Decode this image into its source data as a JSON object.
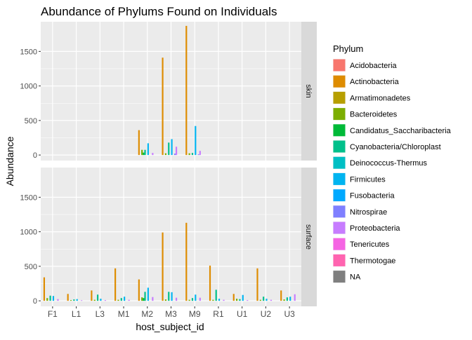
{
  "chart_data": {
    "type": "bar",
    "title": "Abundance of Phylums Found on Individuals",
    "xlabel": "host_subject_id",
    "ylabel": "Abundance",
    "ylim": [
      -80,
      1930
    ],
    "yticks": [
      0,
      500,
      1000,
      1500
    ],
    "grid": true,
    "categories": [
      "F1",
      "L1",
      "L3",
      "M1",
      "M2",
      "M3",
      "M9",
      "R1",
      "U1",
      "U2",
      "U3"
    ],
    "legend": {
      "title": "Phylum",
      "position": "right",
      "entries": [
        {
          "name": "Acidobacteria",
          "color": "#F8766D"
        },
        {
          "name": "Actinobacteria",
          "color": "#DE8C00"
        },
        {
          "name": "Armatimonadetes",
          "color": "#B79F00"
        },
        {
          "name": "Bacteroidetes",
          "color": "#7CAE00"
        },
        {
          "name": "Candidatus_Saccharibacteria",
          "color": "#00BA38"
        },
        {
          "name": "Cyanobacteria/Chloroplast",
          "color": "#00C08B"
        },
        {
          "name": "Deinococcus-Thermus",
          "color": "#00BFC4"
        },
        {
          "name": "Firmicutes",
          "color": "#00B4F0"
        },
        {
          "name": "Fusobacteria",
          "color": "#00A9FF"
        },
        {
          "name": "Nitrospirae",
          "color": "#7F7FFF"
        },
        {
          "name": "Proteobacteria",
          "color": "#C77CFF"
        },
        {
          "name": "Tenericutes",
          "color": "#F564E3"
        },
        {
          "name": "Thermotogae",
          "color": "#FF64B0"
        },
        {
          "name": "NA",
          "color": "#7F7F7F"
        }
      ]
    },
    "facets": [
      {
        "label": "skin",
        "bars": [
          {
            "category": "M2",
            "phylum": "Actinobacteria",
            "value": 360
          },
          {
            "category": "M2",
            "phylum": "Bacteroidetes",
            "value": 75
          },
          {
            "category": "M2",
            "phylum": "Candidatus_Saccharibacteria",
            "value": 35
          },
          {
            "category": "M2",
            "phylum": "Cyanobacteria/Chloroplast",
            "value": 75
          },
          {
            "category": "M2",
            "phylum": "Firmicutes",
            "value": 170
          },
          {
            "category": "M2",
            "phylum": "Proteobacteria",
            "value": 30
          },
          {
            "category": "M3",
            "phylum": "Actinobacteria",
            "value": 1410
          },
          {
            "category": "M3",
            "phylum": "Bacteroidetes",
            "value": 25
          },
          {
            "category": "M3",
            "phylum": "Cyanobacteria/Chloroplast",
            "value": 180
          },
          {
            "category": "M3",
            "phylum": "Firmicutes",
            "value": 230
          },
          {
            "category": "M3",
            "phylum": "Nitrospirae",
            "value": 20
          },
          {
            "category": "M3",
            "phylum": "Proteobacteria",
            "value": 120
          },
          {
            "category": "M9",
            "phylum": "Actinobacteria",
            "value": 1870
          },
          {
            "category": "M9",
            "phylum": "Bacteroidetes",
            "value": 25
          },
          {
            "category": "M9",
            "phylum": "Cyanobacteria/Chloroplast",
            "value": 30
          },
          {
            "category": "M9",
            "phylum": "Firmicutes",
            "value": 420
          },
          {
            "category": "M9",
            "phylum": "Nitrospirae",
            "value": 10
          },
          {
            "category": "M9",
            "phylum": "Proteobacteria",
            "value": 60
          }
        ]
      },
      {
        "label": "surface",
        "bars": [
          {
            "category": "F1",
            "phylum": "Actinobacteria",
            "value": 340
          },
          {
            "category": "F1",
            "phylum": "Bacteroidetes",
            "value": 40
          },
          {
            "category": "F1",
            "phylum": "Cyanobacteria/Chloroplast",
            "value": 75
          },
          {
            "category": "F1",
            "phylum": "Firmicutes",
            "value": 70
          },
          {
            "category": "F1",
            "phylum": "Proteobacteria",
            "value": 25
          },
          {
            "category": "L1",
            "phylum": "Actinobacteria",
            "value": 100
          },
          {
            "category": "L1",
            "phylum": "Bacteroidetes",
            "value": 10
          },
          {
            "category": "L1",
            "phylum": "Cyanobacteria/Chloroplast",
            "value": 20
          },
          {
            "category": "L1",
            "phylum": "Firmicutes",
            "value": 25
          },
          {
            "category": "L1",
            "phylum": "Proteobacteria",
            "value": 8
          },
          {
            "category": "L3",
            "phylum": "Actinobacteria",
            "value": 150
          },
          {
            "category": "L3",
            "phylum": "Bacteroidetes",
            "value": 15
          },
          {
            "category": "L3",
            "phylum": "Cyanobacteria/Chloroplast",
            "value": 90
          },
          {
            "category": "L3",
            "phylum": "Firmicutes",
            "value": 30
          },
          {
            "category": "L3",
            "phylum": "Proteobacteria",
            "value": 10
          },
          {
            "category": "M1",
            "phylum": "Actinobacteria",
            "value": 470
          },
          {
            "category": "M1",
            "phylum": "Bacteroidetes",
            "value": 15
          },
          {
            "category": "M1",
            "phylum": "Cyanobacteria/Chloroplast",
            "value": 40
          },
          {
            "category": "M1",
            "phylum": "Firmicutes",
            "value": 60
          },
          {
            "category": "M1",
            "phylum": "Proteobacteria",
            "value": 15
          },
          {
            "category": "M2",
            "phylum": "Actinobacteria",
            "value": 310
          },
          {
            "category": "M2",
            "phylum": "Bacteroidetes",
            "value": 50
          },
          {
            "category": "M2",
            "phylum": "Candidatus_Saccharibacteria",
            "value": 40
          },
          {
            "category": "M2",
            "phylum": "Cyanobacteria/Chloroplast",
            "value": 130
          },
          {
            "category": "M2",
            "phylum": "Firmicutes",
            "value": 190
          },
          {
            "category": "M2",
            "phylum": "Proteobacteria",
            "value": 55
          },
          {
            "category": "M3",
            "phylum": "Actinobacteria",
            "value": 990
          },
          {
            "category": "M3",
            "phylum": "Bacteroidetes",
            "value": 20
          },
          {
            "category": "M3",
            "phylum": "Cyanobacteria/Chloroplast",
            "value": 130
          },
          {
            "category": "M3",
            "phylum": "Firmicutes",
            "value": 125
          },
          {
            "category": "M3",
            "phylum": "Proteobacteria",
            "value": 45
          },
          {
            "category": "M9",
            "phylum": "Actinobacteria",
            "value": 1130
          },
          {
            "category": "M9",
            "phylum": "Bacteroidetes",
            "value": 15
          },
          {
            "category": "M9",
            "phylum": "Cyanobacteria/Chloroplast",
            "value": 40
          },
          {
            "category": "M9",
            "phylum": "Firmicutes",
            "value": 90
          },
          {
            "category": "M9",
            "phylum": "Proteobacteria",
            "value": 45
          },
          {
            "category": "R1",
            "phylum": "Actinobacteria",
            "value": 510
          },
          {
            "category": "R1",
            "phylum": "Bacteroidetes",
            "value": 15
          },
          {
            "category": "R1",
            "phylum": "Cyanobacteria/Chloroplast",
            "value": 160
          },
          {
            "category": "R1",
            "phylum": "Firmicutes",
            "value": 30
          },
          {
            "category": "R1",
            "phylum": "Proteobacteria",
            "value": 15
          },
          {
            "category": "U1",
            "phylum": "Actinobacteria",
            "value": 100
          },
          {
            "category": "U1",
            "phylum": "Bacteroidetes",
            "value": 30
          },
          {
            "category": "U1",
            "phylum": "Cyanobacteria/Chloroplast",
            "value": 25
          },
          {
            "category": "U1",
            "phylum": "Firmicutes",
            "value": 85
          },
          {
            "category": "U1",
            "phylum": "Proteobacteria",
            "value": 10
          },
          {
            "category": "U2",
            "phylum": "Actinobacteria",
            "value": 470
          },
          {
            "category": "U2",
            "phylum": "Bacteroidetes",
            "value": 15
          },
          {
            "category": "U2",
            "phylum": "Cyanobacteria/Chloroplast",
            "value": 60
          },
          {
            "category": "U2",
            "phylum": "Firmicutes",
            "value": 30
          },
          {
            "category": "U2",
            "phylum": "Proteobacteria",
            "value": 15
          },
          {
            "category": "U3",
            "phylum": "Actinobacteria",
            "value": 150
          },
          {
            "category": "U3",
            "phylum": "Bacteroidetes",
            "value": 20
          },
          {
            "category": "U3",
            "phylum": "Cyanobacteria/Chloroplast",
            "value": 50
          },
          {
            "category": "U3",
            "phylum": "Firmicutes",
            "value": 60
          },
          {
            "category": "U3",
            "phylum": "Proteobacteria",
            "value": 95
          }
        ]
      }
    ]
  }
}
